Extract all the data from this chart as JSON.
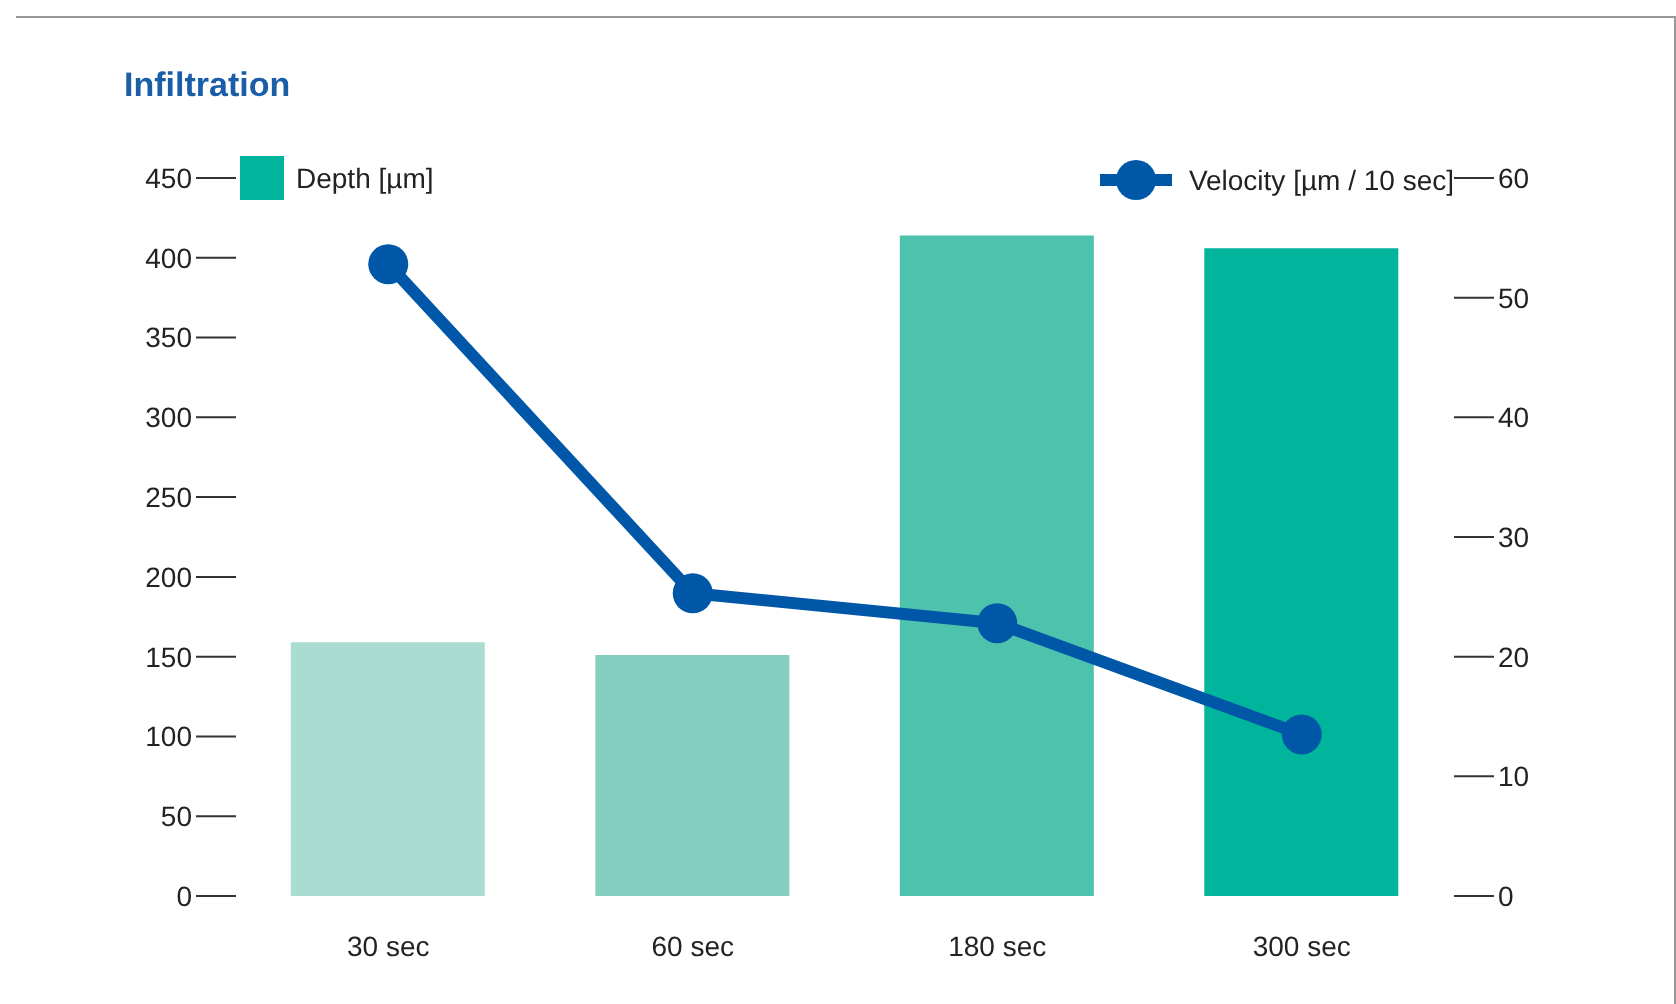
{
  "chart_data": {
    "type": "bar",
    "title": "Infiltration",
    "categories": [
      "30 sec",
      "60 sec",
      "180 sec",
      "300 sec"
    ],
    "series": [
      {
        "name": "Depth [µm]",
        "type": "bar",
        "color": "#00b59b",
        "colors": [
          "#abdcd2",
          "#86cfc0",
          "#4dc2ad",
          "#00b59b"
        ],
        "values": [
          159,
          151,
          414,
          406
        ]
      },
      {
        "name": "Velocity  [µm / 10 sec]",
        "type": "line",
        "axis": "y2",
        "color": "#0057a8",
        "values": [
          52.8,
          25.3,
          22.8,
          13.5
        ]
      }
    ],
    "ylim": [
      0,
      450
    ],
    "yticks": [
      0,
      50,
      100,
      150,
      200,
      250,
      300,
      350,
      400,
      450
    ],
    "y2lim": [
      0,
      60
    ],
    "y2ticks": [
      0,
      10,
      20,
      30,
      40,
      50,
      60
    ],
    "grid": false,
    "legend": "top",
    "marker": "circle",
    "line_style": "solid"
  }
}
